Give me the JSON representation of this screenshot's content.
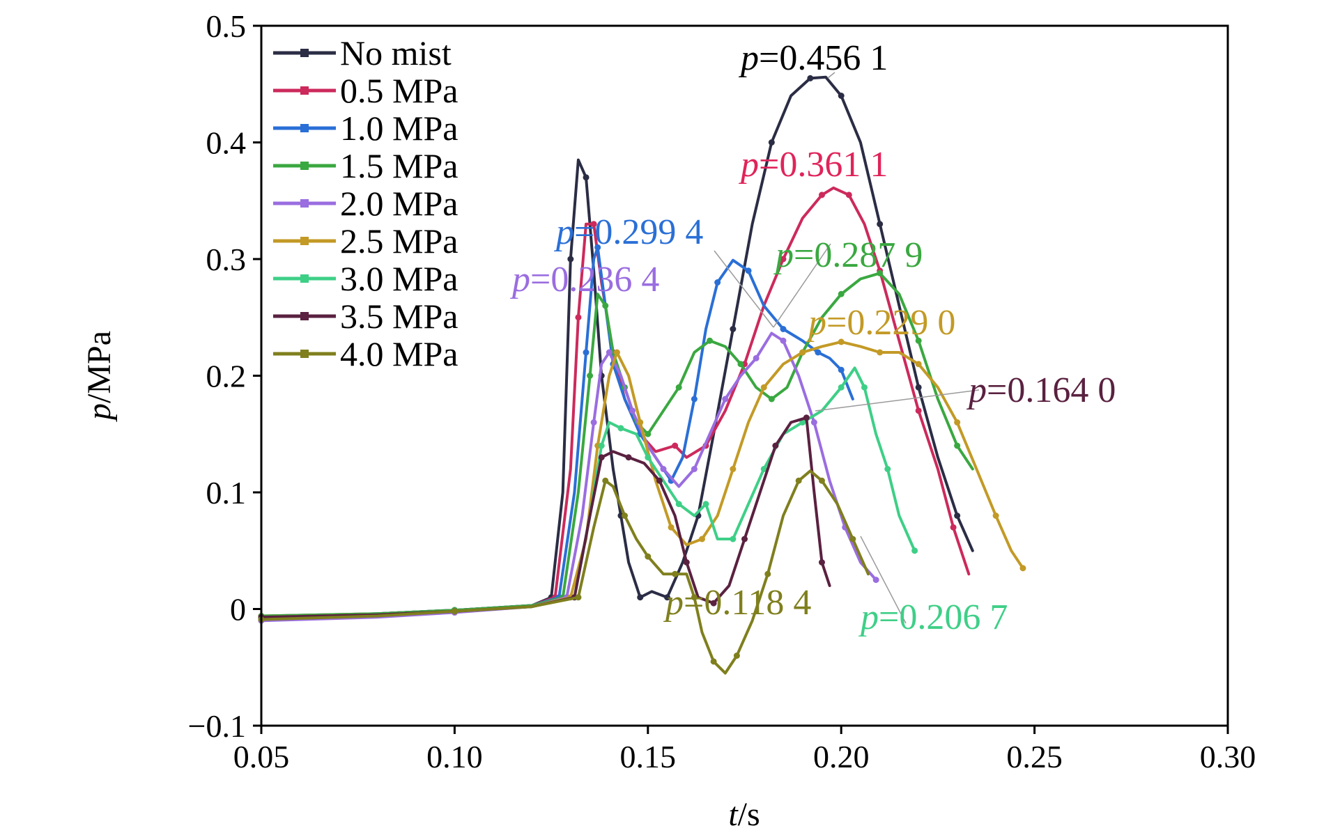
{
  "chart_data": {
    "type": "line",
    "xlabel": {
      "var": "t",
      "unit": "/s"
    },
    "ylabel": {
      "var": "p",
      "unit": "/MPa"
    },
    "xlim": [
      0.05,
      0.3
    ],
    "ylim": [
      -0.1,
      0.5
    ],
    "x_ticks": [
      {
        "value": 0.05,
        "label": "0.05"
      },
      {
        "value": 0.1,
        "label": "0.10"
      },
      {
        "value": 0.15,
        "label": "0.15"
      },
      {
        "value": 0.2,
        "label": "0.20"
      },
      {
        "value": 0.25,
        "label": "0.25"
      },
      {
        "value": 0.3,
        "label": "0.30"
      }
    ],
    "y_ticks": [
      {
        "value": -0.1,
        "label": "−0.1"
      },
      {
        "value": 0.0,
        "label": "0"
      },
      {
        "value": 0.1,
        "label": "0.1"
      },
      {
        "value": 0.2,
        "label": "0.2"
      },
      {
        "value": 0.3,
        "label": "0.3"
      },
      {
        "value": 0.4,
        "label": "0.4"
      },
      {
        "value": 0.5,
        "label": "0.5"
      }
    ],
    "grid": false,
    "legend_position": "top-left",
    "series": [
      {
        "name": "No mist",
        "color": "#2b2d45",
        "points": [
          [
            0.05,
            -0.007
          ],
          [
            0.08,
            -0.004
          ],
          [
            0.1,
            -0.001
          ],
          [
            0.12,
            0.003
          ],
          [
            0.125,
            0.01
          ],
          [
            0.128,
            0.1
          ],
          [
            0.13,
            0.3
          ],
          [
            0.132,
            0.385
          ],
          [
            0.134,
            0.37
          ],
          [
            0.136,
            0.29
          ],
          [
            0.138,
            0.2
          ],
          [
            0.141,
            0.12
          ],
          [
            0.143,
            0.08
          ],
          [
            0.145,
            0.04
          ],
          [
            0.148,
            0.01
          ],
          [
            0.151,
            0.015
          ],
          [
            0.155,
            0.01
          ],
          [
            0.159,
            0.04
          ],
          [
            0.163,
            0.08
          ],
          [
            0.167,
            0.15
          ],
          [
            0.172,
            0.24
          ],
          [
            0.177,
            0.33
          ],
          [
            0.182,
            0.4
          ],
          [
            0.187,
            0.44
          ],
          [
            0.192,
            0.455
          ],
          [
            0.196,
            0.456
          ],
          [
            0.2,
            0.44
          ],
          [
            0.205,
            0.4
          ],
          [
            0.21,
            0.33
          ],
          [
            0.215,
            0.26
          ],
          [
            0.22,
            0.19
          ],
          [
            0.225,
            0.13
          ],
          [
            0.23,
            0.08
          ],
          [
            0.234,
            0.05
          ]
        ]
      },
      {
        "name": "0.5 MPa",
        "color": "#cc2a5c",
        "points": [
          [
            0.05,
            -0.006
          ],
          [
            0.08,
            -0.004
          ],
          [
            0.1,
            -0.001
          ],
          [
            0.12,
            0.003
          ],
          [
            0.126,
            0.01
          ],
          [
            0.13,
            0.12
          ],
          [
            0.132,
            0.25
          ],
          [
            0.134,
            0.33
          ],
          [
            0.136,
            0.33
          ],
          [
            0.138,
            0.28
          ],
          [
            0.141,
            0.22
          ],
          [
            0.144,
            0.18
          ],
          [
            0.148,
            0.15
          ],
          [
            0.152,
            0.135
          ],
          [
            0.157,
            0.14
          ],
          [
            0.16,
            0.13
          ],
          [
            0.165,
            0.14
          ],
          [
            0.17,
            0.17
          ],
          [
            0.175,
            0.21
          ],
          [
            0.18,
            0.26
          ],
          [
            0.185,
            0.3
          ],
          [
            0.19,
            0.335
          ],
          [
            0.195,
            0.355
          ],
          [
            0.198,
            0.361
          ],
          [
            0.202,
            0.355
          ],
          [
            0.206,
            0.33
          ],
          [
            0.21,
            0.29
          ],
          [
            0.215,
            0.23
          ],
          [
            0.22,
            0.17
          ],
          [
            0.225,
            0.12
          ],
          [
            0.229,
            0.07
          ],
          [
            0.233,
            0.03
          ]
        ]
      },
      {
        "name": "1.0 MPa",
        "color": "#2a6fd6",
        "points": [
          [
            0.05,
            -0.007
          ],
          [
            0.08,
            -0.004
          ],
          [
            0.1,
            -0.001
          ],
          [
            0.12,
            0.003
          ],
          [
            0.127,
            0.01
          ],
          [
            0.131,
            0.1
          ],
          [
            0.134,
            0.22
          ],
          [
            0.136,
            0.3
          ],
          [
            0.137,
            0.31
          ],
          [
            0.139,
            0.26
          ],
          [
            0.141,
            0.21
          ],
          [
            0.144,
            0.18
          ],
          [
            0.148,
            0.15
          ],
          [
            0.152,
            0.13
          ],
          [
            0.156,
            0.11
          ],
          [
            0.159,
            0.13
          ],
          [
            0.162,
            0.18
          ],
          [
            0.165,
            0.24
          ],
          [
            0.168,
            0.28
          ],
          [
            0.172,
            0.299
          ],
          [
            0.176,
            0.29
          ],
          [
            0.18,
            0.26
          ],
          [
            0.185,
            0.24
          ],
          [
            0.19,
            0.23
          ],
          [
            0.194,
            0.22
          ],
          [
            0.197,
            0.215
          ],
          [
            0.2,
            0.205
          ],
          [
            0.203,
            0.18
          ]
        ]
      },
      {
        "name": "1.5 MPa",
        "color": "#3aa840",
        "points": [
          [
            0.05,
            -0.006
          ],
          [
            0.08,
            -0.004
          ],
          [
            0.1,
            -0.001
          ],
          [
            0.12,
            0.003
          ],
          [
            0.128,
            0.01
          ],
          [
            0.132,
            0.1
          ],
          [
            0.135,
            0.2
          ],
          [
            0.137,
            0.27
          ],
          [
            0.139,
            0.26
          ],
          [
            0.141,
            0.22
          ],
          [
            0.144,
            0.19
          ],
          [
            0.147,
            0.16
          ],
          [
            0.15,
            0.15
          ],
          [
            0.154,
            0.17
          ],
          [
            0.158,
            0.19
          ],
          [
            0.162,
            0.22
          ],
          [
            0.166,
            0.23
          ],
          [
            0.17,
            0.225
          ],
          [
            0.174,
            0.21
          ],
          [
            0.178,
            0.19
          ],
          [
            0.182,
            0.18
          ],
          [
            0.186,
            0.19
          ],
          [
            0.19,
            0.22
          ],
          [
            0.195,
            0.25
          ],
          [
            0.2,
            0.27
          ],
          [
            0.205,
            0.283
          ],
          [
            0.21,
            0.2879
          ],
          [
            0.215,
            0.27
          ],
          [
            0.22,
            0.23
          ],
          [
            0.225,
            0.18
          ],
          [
            0.23,
            0.14
          ],
          [
            0.234,
            0.12
          ]
        ]
      },
      {
        "name": "2.0 MPa",
        "color": "#9a6de0",
        "points": [
          [
            0.05,
            -0.01
          ],
          [
            0.08,
            -0.007
          ],
          [
            0.1,
            -0.003
          ],
          [
            0.12,
            0.002
          ],
          [
            0.129,
            0.01
          ],
          [
            0.133,
            0.08
          ],
          [
            0.136,
            0.16
          ],
          [
            0.138,
            0.21
          ],
          [
            0.14,
            0.22
          ],
          [
            0.143,
            0.2
          ],
          [
            0.146,
            0.17
          ],
          [
            0.15,
            0.14
          ],
          [
            0.154,
            0.12
          ],
          [
            0.158,
            0.105
          ],
          [
            0.162,
            0.12
          ],
          [
            0.166,
            0.15
          ],
          [
            0.17,
            0.18
          ],
          [
            0.174,
            0.2
          ],
          [
            0.178,
            0.215
          ],
          [
            0.182,
            0.2364
          ],
          [
            0.185,
            0.23
          ],
          [
            0.189,
            0.2
          ],
          [
            0.193,
            0.16
          ],
          [
            0.197,
            0.11
          ],
          [
            0.201,
            0.07
          ],
          [
            0.205,
            0.04
          ],
          [
            0.209,
            0.025
          ]
        ]
      },
      {
        "name": "2.5 MPa",
        "color": "#c39a26",
        "points": [
          [
            0.05,
            -0.007
          ],
          [
            0.08,
            -0.005
          ],
          [
            0.1,
            -0.002
          ],
          [
            0.12,
            0.002
          ],
          [
            0.13,
            0.01
          ],
          [
            0.134,
            0.06
          ],
          [
            0.137,
            0.14
          ],
          [
            0.14,
            0.2
          ],
          [
            0.142,
            0.22
          ],
          [
            0.145,
            0.2
          ],
          [
            0.148,
            0.16
          ],
          [
            0.152,
            0.11
          ],
          [
            0.156,
            0.07
          ],
          [
            0.16,
            0.055
          ],
          [
            0.164,
            0.06
          ],
          [
            0.168,
            0.08
          ],
          [
            0.172,
            0.12
          ],
          [
            0.176,
            0.16
          ],
          [
            0.18,
            0.19
          ],
          [
            0.185,
            0.21
          ],
          [
            0.19,
            0.22
          ],
          [
            0.195,
            0.225
          ],
          [
            0.2,
            0.229
          ],
          [
            0.205,
            0.225
          ],
          [
            0.21,
            0.22
          ],
          [
            0.215,
            0.22
          ],
          [
            0.22,
            0.21
          ],
          [
            0.225,
            0.19
          ],
          [
            0.23,
            0.16
          ],
          [
            0.235,
            0.12
          ],
          [
            0.24,
            0.08
          ],
          [
            0.244,
            0.05
          ],
          [
            0.247,
            0.035
          ]
        ]
      },
      {
        "name": "3.0 MPa",
        "color": "#3ecf87",
        "points": [
          [
            0.05,
            -0.008
          ],
          [
            0.08,
            -0.005
          ],
          [
            0.1,
            -0.002
          ],
          [
            0.12,
            0.002
          ],
          [
            0.131,
            0.01
          ],
          [
            0.135,
            0.08
          ],
          [
            0.138,
            0.14
          ],
          [
            0.14,
            0.16
          ],
          [
            0.143,
            0.155
          ],
          [
            0.147,
            0.15
          ],
          [
            0.15,
            0.13
          ],
          [
            0.154,
            0.11
          ],
          [
            0.158,
            0.09
          ],
          [
            0.162,
            0.08
          ],
          [
            0.165,
            0.09
          ],
          [
            0.168,
            0.06
          ],
          [
            0.172,
            0.06
          ],
          [
            0.176,
            0.09
          ],
          [
            0.18,
            0.12
          ],
          [
            0.185,
            0.15
          ],
          [
            0.19,
            0.16
          ],
          [
            0.195,
            0.17
          ],
          [
            0.2,
            0.19
          ],
          [
            0.2035,
            0.2067
          ],
          [
            0.206,
            0.19
          ],
          [
            0.209,
            0.15
          ],
          [
            0.212,
            0.12
          ],
          [
            0.215,
            0.08
          ],
          [
            0.219,
            0.05
          ]
        ]
      },
      {
        "name": "3.5 MPa",
        "color": "#5a2140",
        "points": [
          [
            0.05,
            -0.007
          ],
          [
            0.08,
            -0.005
          ],
          [
            0.1,
            -0.002
          ],
          [
            0.12,
            0.002
          ],
          [
            0.131,
            0.01
          ],
          [
            0.135,
            0.08
          ],
          [
            0.138,
            0.13
          ],
          [
            0.141,
            0.135
          ],
          [
            0.145,
            0.13
          ],
          [
            0.149,
            0.125
          ],
          [
            0.153,
            0.11
          ],
          [
            0.157,
            0.08
          ],
          [
            0.16,
            0.04
          ],
          [
            0.163,
            0.01
          ],
          [
            0.167,
            0.005
          ],
          [
            0.171,
            0.02
          ],
          [
            0.175,
            0.06
          ],
          [
            0.179,
            0.1
          ],
          [
            0.183,
            0.14
          ],
          [
            0.187,
            0.16
          ],
          [
            0.191,
            0.164
          ],
          [
            0.193,
            0.1
          ],
          [
            0.195,
            0.04
          ],
          [
            0.197,
            0.02
          ]
        ]
      },
      {
        "name": "4.0 MPa",
        "color": "#7f7f1e",
        "points": [
          [
            0.05,
            -0.009
          ],
          [
            0.08,
            -0.006
          ],
          [
            0.1,
            -0.002
          ],
          [
            0.12,
            0.002
          ],
          [
            0.132,
            0.01
          ],
          [
            0.136,
            0.07
          ],
          [
            0.139,
            0.11
          ],
          [
            0.141,
            0.105
          ],
          [
            0.144,
            0.08
          ],
          [
            0.147,
            0.06
          ],
          [
            0.15,
            0.045
          ],
          [
            0.154,
            0.03
          ],
          [
            0.157,
            0.03
          ],
          [
            0.16,
            0.03
          ],
          [
            0.162,
            0.01
          ],
          [
            0.164,
            -0.02
          ],
          [
            0.167,
            -0.045
          ],
          [
            0.17,
            -0.055
          ],
          [
            0.173,
            -0.04
          ],
          [
            0.177,
            -0.01
          ],
          [
            0.181,
            0.03
          ],
          [
            0.185,
            0.08
          ],
          [
            0.189,
            0.11
          ],
          [
            0.192,
            0.1184
          ],
          [
            0.195,
            0.11
          ],
          [
            0.199,
            0.09
          ],
          [
            0.203,
            0.06
          ],
          [
            0.207,
            0.03
          ]
        ]
      }
    ],
    "annotations": [
      {
        "prefix": "p",
        "text": "=0.456 1",
        "color": "#000000"
      },
      {
        "prefix": "p",
        "text": "=0.361 1",
        "color": "#e0245a"
      },
      {
        "prefix": "p",
        "text": "=0.299 4",
        "color": "#2a6fd6"
      },
      {
        "prefix": "p",
        "text": "=0.287 9",
        "color": "#3aa840"
      },
      {
        "prefix": "p",
        "text": "=0.236 4",
        "color": "#9a6de0"
      },
      {
        "prefix": "p",
        "text": "=0.229 0",
        "color": "#c39a26"
      },
      {
        "prefix": "p",
        "text": "=0.164 0",
        "color": "#5a2140"
      },
      {
        "prefix": "p",
        "text": "=0.118 4",
        "color": "#7f7f1e"
      },
      {
        "prefix": "p",
        "text": "=0.206 7",
        "color": "#3ecf87"
      }
    ]
  }
}
